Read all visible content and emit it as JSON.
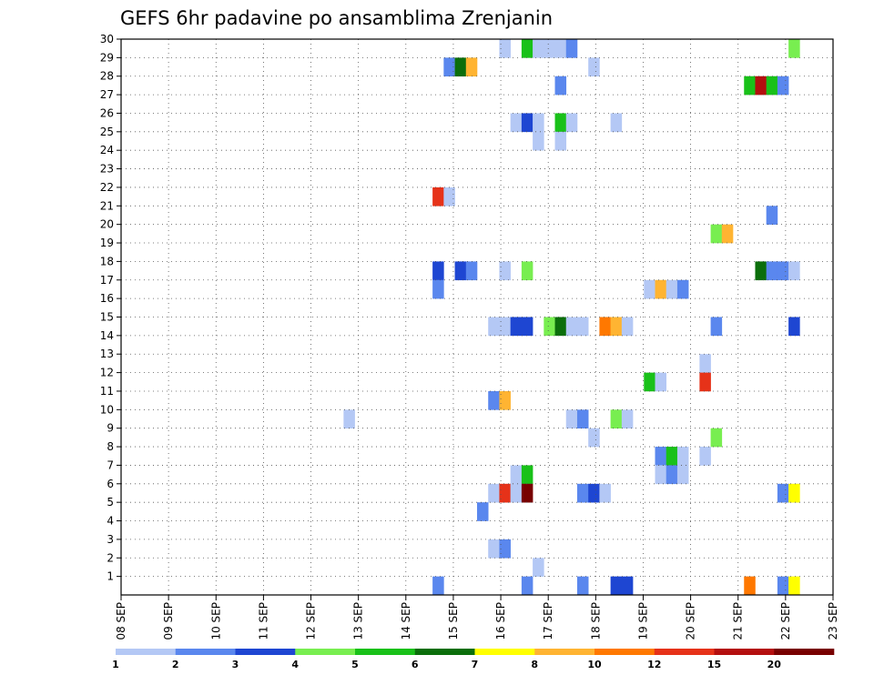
{
  "chart_data": {
    "type": "heatmap",
    "title": "GEFS 6hr padavine po ansamblima Zrenjanin",
    "xlabel": "",
    "ylabel": "",
    "x_start": "08 SEP",
    "x_end": "23 SEP",
    "x_step_hours": 6,
    "x_tick_labels": [
      "08 SEP",
      "09 SEP",
      "10 SEP",
      "11 SEP",
      "12 SEP",
      "13 SEP",
      "14 SEP",
      "15 SEP",
      "16 SEP",
      "17 SEP",
      "18 SEP",
      "19 SEP",
      "20 SEP",
      "21 SEP",
      "22 SEP",
      "23 SEP"
    ],
    "y_tick_labels": [
      "1",
      "2",
      "3",
      "4",
      "5",
      "6",
      "7",
      "8",
      "9",
      "10",
      "11",
      "12",
      "13",
      "14",
      "15",
      "16",
      "17",
      "18",
      "19",
      "20",
      "21",
      "22",
      "23",
      "24",
      "25",
      "26",
      "27",
      "28",
      "29",
      "30"
    ],
    "y_range": [
      0,
      30
    ],
    "grid": true,
    "legend": {
      "placement": "bottom",
      "labels": [
        "1",
        "2",
        "3",
        "4",
        "5",
        "6",
        "7",
        "8",
        "10",
        "12",
        "15",
        "20"
      ],
      "colors": [
        "#b4c8f5",
        "#5a87ee",
        "#1e46d2",
        "#78ee50",
        "#19c119",
        "#0b6e0b",
        "#ffff00",
        "#ffb432",
        "#ff7800",
        "#e63219",
        "#b40f0f",
        "#780000"
      ]
    },
    "color_scale_note": "",
    "cells": [
      {
        "member": 29,
        "cols": [
          34
        ],
        "level": 0
      },
      {
        "member": 29,
        "cols": [
          36
        ],
        "level": 4
      },
      {
        "member": 29,
        "cols": [
          37,
          38,
          39
        ],
        "level": 0
      },
      {
        "member": 29,
        "cols": [
          40
        ],
        "level": 1
      },
      {
        "member": 29,
        "cols": [
          60
        ],
        "level": 3
      },
      {
        "member": 28,
        "cols": [
          29
        ],
        "level": 1
      },
      {
        "member": 28,
        "cols": [
          30
        ],
        "level": 5
      },
      {
        "member": 28,
        "cols": [
          31
        ],
        "level": 7
      },
      {
        "member": 28,
        "cols": [
          42
        ],
        "level": 0
      },
      {
        "member": 27,
        "cols": [
          39
        ],
        "level": 1
      },
      {
        "member": 27,
        "cols": [
          56
        ],
        "level": 4
      },
      {
        "member": 27,
        "cols": [
          57
        ],
        "level": 10
      },
      {
        "member": 27,
        "cols": [
          58
        ],
        "level": 4
      },
      {
        "member": 27,
        "cols": [
          59
        ],
        "level": 1
      },
      {
        "member": 25,
        "cols": [
          35
        ],
        "level": 0
      },
      {
        "member": 25,
        "cols": [
          36
        ],
        "level": 2
      },
      {
        "member": 25,
        "cols": [
          37
        ],
        "level": 0
      },
      {
        "member": 25,
        "cols": [
          39
        ],
        "level": 4
      },
      {
        "member": 25,
        "cols": [
          40
        ],
        "level": 0
      },
      {
        "member": 25,
        "cols": [
          44
        ],
        "level": 0
      },
      {
        "member": 24,
        "cols": [
          37
        ],
        "level": 0
      },
      {
        "member": 24,
        "cols": [
          39
        ],
        "level": 0
      },
      {
        "member": 21,
        "cols": [
          28
        ],
        "level": 9
      },
      {
        "member": 21,
        "cols": [
          29
        ],
        "level": 0
      },
      {
        "member": 20,
        "cols": [
          58
        ],
        "level": 1
      },
      {
        "member": 19,
        "cols": [
          53
        ],
        "level": 3
      },
      {
        "member": 19,
        "cols": [
          54
        ],
        "level": 7
      },
      {
        "member": 17,
        "cols": [
          28
        ],
        "level": 2
      },
      {
        "member": 17,
        "cols": [
          30
        ],
        "level": 2
      },
      {
        "member": 17,
        "cols": [
          31
        ],
        "level": 1
      },
      {
        "member": 17,
        "cols": [
          34
        ],
        "level": 0
      },
      {
        "member": 17,
        "cols": [
          36
        ],
        "level": 3
      },
      {
        "member": 17,
        "cols": [
          57
        ],
        "level": 5
      },
      {
        "member": 17,
        "cols": [
          58,
          59
        ],
        "level": 1
      },
      {
        "member": 17,
        "cols": [
          60
        ],
        "level": 0
      },
      {
        "member": 16,
        "cols": [
          28
        ],
        "level": 1
      },
      {
        "member": 16,
        "cols": [
          47
        ],
        "level": 0
      },
      {
        "member": 16,
        "cols": [
          48
        ],
        "level": 7
      },
      {
        "member": 16,
        "cols": [
          49
        ],
        "level": 0
      },
      {
        "member": 16,
        "cols": [
          50
        ],
        "level": 1
      },
      {
        "member": 14,
        "cols": [
          33,
          34
        ],
        "level": 0
      },
      {
        "member": 14,
        "cols": [
          35,
          36
        ],
        "level": 2
      },
      {
        "member": 14,
        "cols": [
          38
        ],
        "level": 3
      },
      {
        "member": 14,
        "cols": [
          39
        ],
        "level": 5
      },
      {
        "member": 14,
        "cols": [
          40,
          41
        ],
        "level": 0
      },
      {
        "member": 14,
        "cols": [
          43
        ],
        "level": 8
      },
      {
        "member": 14,
        "cols": [
          44
        ],
        "level": 7
      },
      {
        "member": 14,
        "cols": [
          45
        ],
        "level": 0
      },
      {
        "member": 14,
        "cols": [
          53
        ],
        "level": 1
      },
      {
        "member": 14,
        "cols": [
          60
        ],
        "level": 2
      },
      {
        "member": 12,
        "cols": [
          52
        ],
        "level": 0
      },
      {
        "member": 11,
        "cols": [
          47
        ],
        "level": 4
      },
      {
        "member": 11,
        "cols": [
          48
        ],
        "level": 0
      },
      {
        "member": 11,
        "cols": [
          52
        ],
        "level": 9
      },
      {
        "member": 10,
        "cols": [
          33
        ],
        "level": 1
      },
      {
        "member": 10,
        "cols": [
          34
        ],
        "level": 7
      },
      {
        "member": 9,
        "cols": [
          20
        ],
        "level": 0
      },
      {
        "member": 9,
        "cols": [
          40
        ],
        "level": 0
      },
      {
        "member": 9,
        "cols": [
          41
        ],
        "level": 1
      },
      {
        "member": 9,
        "cols": [
          44
        ],
        "level": 3
      },
      {
        "member": 9,
        "cols": [
          45
        ],
        "level": 0
      },
      {
        "member": 8,
        "cols": [
          42
        ],
        "level": 0
      },
      {
        "member": 8,
        "cols": [
          53
        ],
        "level": 3
      },
      {
        "member": 7,
        "cols": [
          48
        ],
        "level": 1
      },
      {
        "member": 7,
        "cols": [
          49
        ],
        "level": 4
      },
      {
        "member": 7,
        "cols": [
          50
        ],
        "level": 0
      },
      {
        "member": 7,
        "cols": [
          52
        ],
        "level": 0
      },
      {
        "member": 6,
        "cols": [
          35
        ],
        "level": 0
      },
      {
        "member": 6,
        "cols": [
          36
        ],
        "level": 4
      },
      {
        "member": 6,
        "cols": [
          48
        ],
        "level": 0
      },
      {
        "member": 6,
        "cols": [
          49
        ],
        "level": 1
      },
      {
        "member": 6,
        "cols": [
          50
        ],
        "level": 0
      },
      {
        "member": 5,
        "cols": [
          33
        ],
        "level": 0
      },
      {
        "member": 5,
        "cols": [
          34
        ],
        "level": 9
      },
      {
        "member": 5,
        "cols": [
          35
        ],
        "level": 0
      },
      {
        "member": 5,
        "cols": [
          36
        ],
        "level": 11
      },
      {
        "member": 5,
        "cols": [
          41
        ],
        "level": 1
      },
      {
        "member": 5,
        "cols": [
          42
        ],
        "level": 2
      },
      {
        "member": 5,
        "cols": [
          43
        ],
        "level": 0
      },
      {
        "member": 5,
        "cols": [
          59
        ],
        "level": 1
      },
      {
        "member": 5,
        "cols": [
          60
        ],
        "level": 6
      },
      {
        "member": 4,
        "cols": [
          32
        ],
        "level": 1
      },
      {
        "member": 2,
        "cols": [
          33
        ],
        "level": 0
      },
      {
        "member": 2,
        "cols": [
          34
        ],
        "level": 1
      },
      {
        "member": 1,
        "cols": [
          37
        ],
        "level": 0
      },
      {
        "member": 0,
        "cols": [
          28
        ],
        "level": 1
      },
      {
        "member": 0,
        "cols": [
          36
        ],
        "level": 1
      },
      {
        "member": 0,
        "cols": [
          41
        ],
        "level": 1
      },
      {
        "member": 0,
        "cols": [
          44,
          45
        ],
        "level": 2
      },
      {
        "member": 0,
        "cols": [
          56
        ],
        "level": 8
      },
      {
        "member": 0,
        "cols": [
          59
        ],
        "level": 1
      },
      {
        "member": 0,
        "cols": [
          60
        ],
        "level": 6
      }
    ]
  }
}
